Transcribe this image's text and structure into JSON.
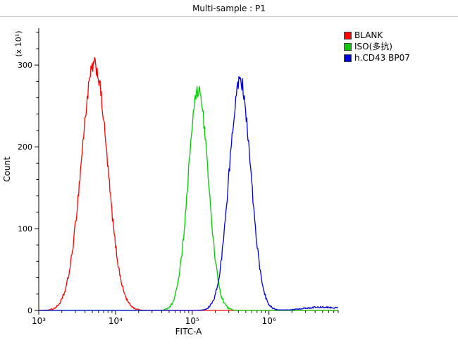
{
  "title": "Multi-sample : P1",
  "chart_data": {
    "type": "line",
    "subtype": "flow-cytometry-histogram",
    "title": "Multi-sample : P1",
    "xlabel": "FITC-A",
    "ylabel": "Count",
    "y_unit_label": "(x 10¹)",
    "x_scale": "log",
    "xlim": [
      1000,
      8000000
    ],
    "ylim": [
      0,
      345
    ],
    "yticks": [
      0,
      100,
      200,
      300
    ],
    "y_minor_step": 20,
    "xticks": [
      {
        "value": 1000,
        "label": "10³"
      },
      {
        "value": 10000,
        "label": "10⁴"
      },
      {
        "value": 100000,
        "label": "10⁵"
      },
      {
        "value": 1000000,
        "label": "10⁶"
      }
    ],
    "grid": false,
    "legend_position": "top-right",
    "series": [
      {
        "name": "BLANK",
        "color": "#ff0000",
        "peaks": [
          {
            "x": 5300,
            "y": 300,
            "sigma_log": 0.17
          }
        ]
      },
      {
        "name": "ISO(多抗)",
        "color": "#00cc00",
        "peaks": [
          {
            "x": 120000,
            "y": 269,
            "sigma_log": 0.13
          }
        ]
      },
      {
        "name": "h.CD43 BP07",
        "color": "#0000dd",
        "peaks": [
          {
            "x": 420000,
            "y": 282,
            "sigma_log": 0.14
          },
          {
            "x": 5000000,
            "y": 4,
            "sigma_log": 0.25
          }
        ]
      }
    ]
  },
  "legend": {
    "items": [
      {
        "label": "BLANK",
        "color": "#ff0000"
      },
      {
        "label": "ISO(多抗)",
        "color": "#00cc00"
      },
      {
        "label": "h.CD43 BP07",
        "color": "#0000dd"
      }
    ]
  }
}
